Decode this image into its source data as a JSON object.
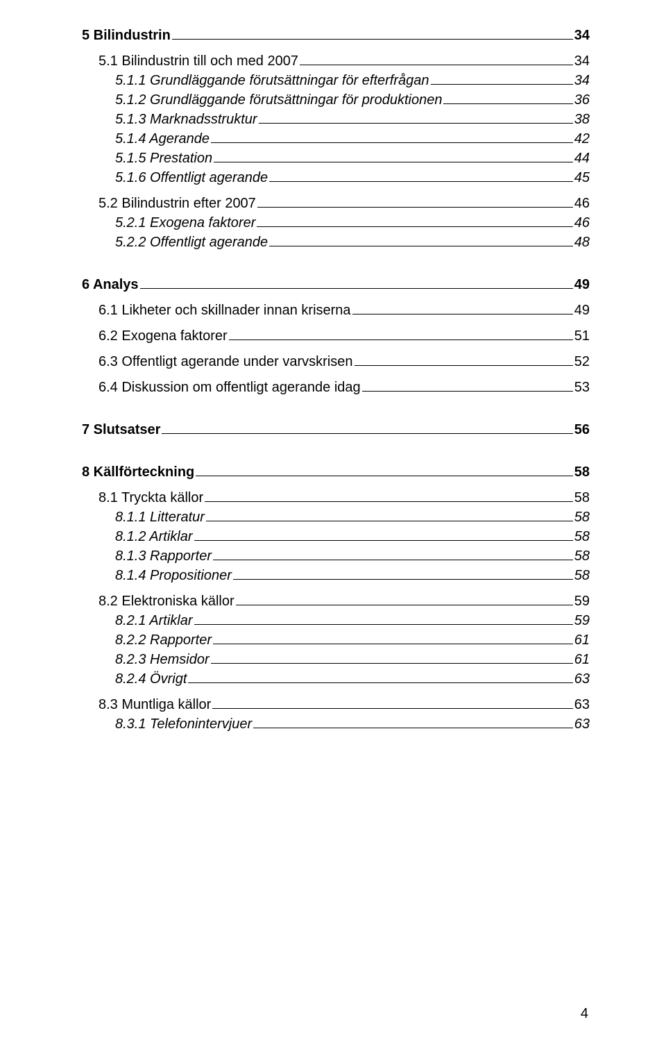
{
  "toc": [
    {
      "level": 0,
      "label": "5 Bilindustrin",
      "page": "34",
      "first": true
    },
    {
      "level": 1,
      "label": "5.1 Bilindustrin till och med 2007",
      "page": "34"
    },
    {
      "level": 2,
      "label": "5.1.1 Grundläggande förutsättningar för efterfrågan",
      "page": "34"
    },
    {
      "level": 2,
      "label": "5.1.2 Grundläggande förutsättningar för produktionen",
      "page": "36"
    },
    {
      "level": 2,
      "label": "5.1.3 Marknadsstruktur",
      "page": "38"
    },
    {
      "level": 2,
      "label": "5.1.4 Agerande",
      "page": "42"
    },
    {
      "level": 2,
      "label": "5.1.5 Prestation",
      "page": "44"
    },
    {
      "level": 2,
      "label": "5.1.6 Offentligt agerande",
      "page": "45"
    },
    {
      "level": 1,
      "label": "5.2 Bilindustrin efter 2007",
      "page": "46"
    },
    {
      "level": 2,
      "label": "5.2.1 Exogena faktorer",
      "page": "46"
    },
    {
      "level": 2,
      "label": "5.2.2 Offentligt agerande",
      "page": "48"
    },
    {
      "level": 0,
      "label": "6 Analys",
      "page": "49"
    },
    {
      "level": 1,
      "label": "6.1 Likheter och skillnader innan kriserna",
      "page": "49"
    },
    {
      "level": 1,
      "label": "6.2 Exogena faktorer",
      "page": "51"
    },
    {
      "level": 1,
      "label": "6.3 Offentligt agerande under varvskrisen",
      "page": "52"
    },
    {
      "level": 1,
      "label": "6.4 Diskussion om offentligt agerande idag",
      "page": "53"
    },
    {
      "level": 0,
      "label": "7 Slutsatser",
      "page": "56"
    },
    {
      "level": 0,
      "label": "8 Källförteckning",
      "page": "58"
    },
    {
      "level": 1,
      "label": "8.1 Tryckta källor",
      "page": "58"
    },
    {
      "level": 2,
      "label": "8.1.1 Litteratur",
      "page": "58"
    },
    {
      "level": 2,
      "label": "8.1.2 Artiklar",
      "page": "58"
    },
    {
      "level": 2,
      "label": "8.1.3 Rapporter",
      "page": "58"
    },
    {
      "level": 2,
      "label": "8.1.4 Propositioner",
      "page": "58"
    },
    {
      "level": 1,
      "label": "8.2 Elektroniska källor",
      "page": "59"
    },
    {
      "level": 2,
      "label": "8.2.1 Artiklar",
      "page": "59"
    },
    {
      "level": 2,
      "label": "8.2.2 Rapporter",
      "page": "61"
    },
    {
      "level": 2,
      "label": "8.2.3 Hemsidor",
      "page": "61"
    },
    {
      "level": 2,
      "label": "8.2.4 Övrigt",
      "page": "63"
    },
    {
      "level": 1,
      "label": "8.3 Muntliga källor",
      "page": "63"
    },
    {
      "level": 2,
      "label": "8.3.1 Telefonintervjuer",
      "page": "63"
    }
  ],
  "footer_page_number": "4"
}
